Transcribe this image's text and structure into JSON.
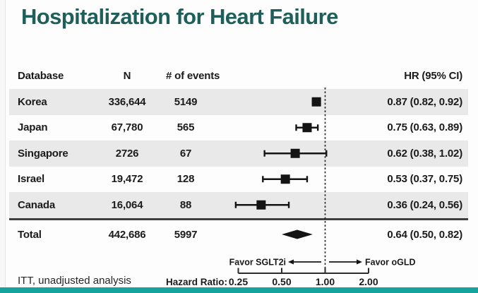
{
  "title": "Hospitalization for Heart Failure",
  "footnote": "ITT, unadjusted analysis",
  "colors": {
    "title_teal": "#1E5F5A",
    "accent_bar_teal": "#17A39D",
    "row_band_gray": "#E9E9E9",
    "marker_black": "#141414",
    "text_dark": "#1B1B1B"
  },
  "table": {
    "headers": [
      "Database",
      "N",
      "# of events",
      "HR (95% CI)"
    ],
    "rows": [
      {
        "database": "Korea",
        "n": "336,644",
        "events": "5149",
        "hr_text": "0.87 (0.82, 0.92)"
      },
      {
        "database": "Japan",
        "n": "67,780",
        "events": "565",
        "hr_text": "0.75 (0.63, 0.89)"
      },
      {
        "database": "Singapore",
        "n": "2726",
        "events": "67",
        "hr_text": "0.62 (0.38, 1.02)"
      },
      {
        "database": "Israel",
        "n": "19,472",
        "events": "128",
        "hr_text": "0.53 (0.37, 0.75)"
      },
      {
        "database": "Canada",
        "n": "16,064",
        "events": "88",
        "hr_text": "0.36 (0.24, 0.56)"
      }
    ],
    "total": {
      "database": "Total",
      "n": "442,686",
      "events": "5997",
      "hr_text": "0.64 (0.50, 0.82)"
    }
  },
  "axis": {
    "label": "Hazard Ratio:",
    "tick_labels": [
      "0.25",
      "0.50",
      "1.00",
      "2.00"
    ]
  },
  "legend": {
    "left": "Favor SGLT2i",
    "right": "Favor oGLD"
  },
  "chart_data": {
    "type": "forest",
    "title": "Hospitalization for Heart Failure",
    "xlabel": "Hazard Ratio",
    "x_scale": "log",
    "x_range": [
      0.25,
      2.0
    ],
    "x_ticks": [
      0.25,
      0.5,
      1.0,
      2.0
    ],
    "reference_line": 1.0,
    "favor_left": "Favor SGLT2i",
    "favor_right": "Favor oGLD",
    "rows": [
      {
        "label": "Korea",
        "n": 336644,
        "events": 5149,
        "hr": 0.87,
        "ci_low": 0.82,
        "ci_high": 0.92
      },
      {
        "label": "Japan",
        "n": 67780,
        "events": 565,
        "hr": 0.75,
        "ci_low": 0.63,
        "ci_high": 0.89
      },
      {
        "label": "Singapore",
        "n": 2726,
        "events": 67,
        "hr": 0.62,
        "ci_low": 0.38,
        "ci_high": 1.02
      },
      {
        "label": "Israel",
        "n": 19472,
        "events": 128,
        "hr": 0.53,
        "ci_low": 0.37,
        "ci_high": 0.75
      },
      {
        "label": "Canada",
        "n": 16064,
        "events": 88,
        "hr": 0.36,
        "ci_low": 0.24,
        "ci_high": 0.56
      }
    ],
    "total": {
      "label": "Total",
      "n": 442686,
      "events": 5997,
      "hr": 0.64,
      "ci_low": 0.5,
      "ci_high": 0.82
    },
    "footnote": "ITT, unadjusted analysis"
  }
}
